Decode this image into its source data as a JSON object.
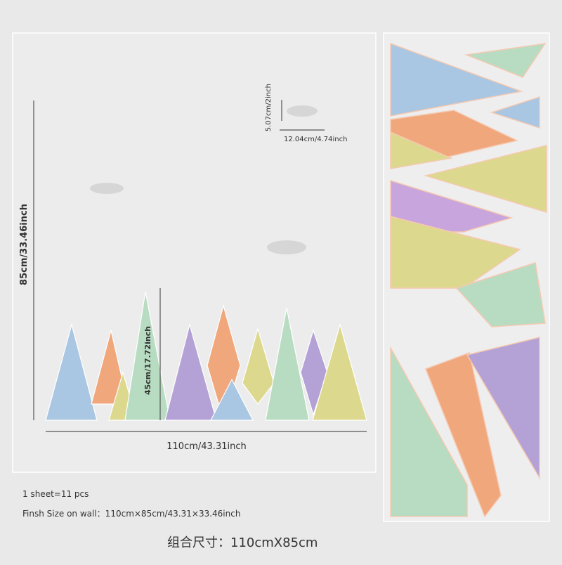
{
  "dimensions": {
    "cloud_height": "5.07cm/2inch",
    "cloud_width": "12.04cm/4.74inch",
    "total_height": "85cm/33.46inch",
    "mountain_height": "45cm/17.72inch",
    "total_width": "110cm/43.31inch"
  },
  "info": {
    "pieces": "1 sheet=11 pcs",
    "finish_size": "Finsh Size on wall：110cm×85cm/43.31×33.46inch",
    "combined_size": "组合尺寸：110cmX85cm"
  }
}
